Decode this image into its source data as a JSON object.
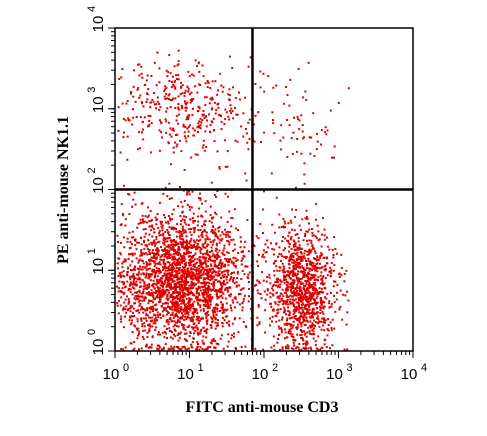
{
  "chart_data": {
    "type": "scatter",
    "title": "",
    "xlabel": "FITC anti-mouse CD3",
    "ylabel": "PE anti-mouse NK1.1",
    "xscale": "log",
    "yscale": "log",
    "xlim": [
      1,
      10000
    ],
    "ylim": [
      1,
      10000
    ],
    "x_ticks": [
      {
        "base": "10",
        "exp": "0",
        "value": 1
      },
      {
        "base": "10",
        "exp": "1",
        "value": 10
      },
      {
        "base": "10",
        "exp": "2",
        "value": 100
      },
      {
        "base": "10",
        "exp": "3",
        "value": 1000
      },
      {
        "base": "10",
        "exp": "4",
        "value": 10000
      }
    ],
    "y_ticks": [
      {
        "base": "10",
        "exp": "0",
        "value": 1
      },
      {
        "base": "10",
        "exp": "1",
        "value": 10
      },
      {
        "base": "10",
        "exp": "2",
        "value": 100
      },
      {
        "base": "10",
        "exp": "3",
        "value": 1000
      },
      {
        "base": "10",
        "exp": "4",
        "value": 10000
      }
    ],
    "gates": {
      "x": 70,
      "y": 100
    },
    "point_color": "#dd0000",
    "populations": [
      {
        "name": "",
        "x_center": 7,
        "y_center": 8,
        "x_spread": 0.45,
        "y_spread": 0.42,
        "count": 2600
      },
      {
        "name": "",
        "x_center": 320,
        "y_center": 6,
        "x_spread": 0.22,
        "y_spread": 0.38,
        "count": 1100
      },
      {
        "name": "",
        "x_center": 8,
        "y_center": 1100,
        "x_spread": 0.45,
        "y_spread": 0.28,
        "count": 380
      },
      {
        "name": "",
        "x_center": 250,
        "y_center": 500,
        "x_spread": 0.3,
        "y_spread": 0.35,
        "count": 70
      }
    ]
  }
}
